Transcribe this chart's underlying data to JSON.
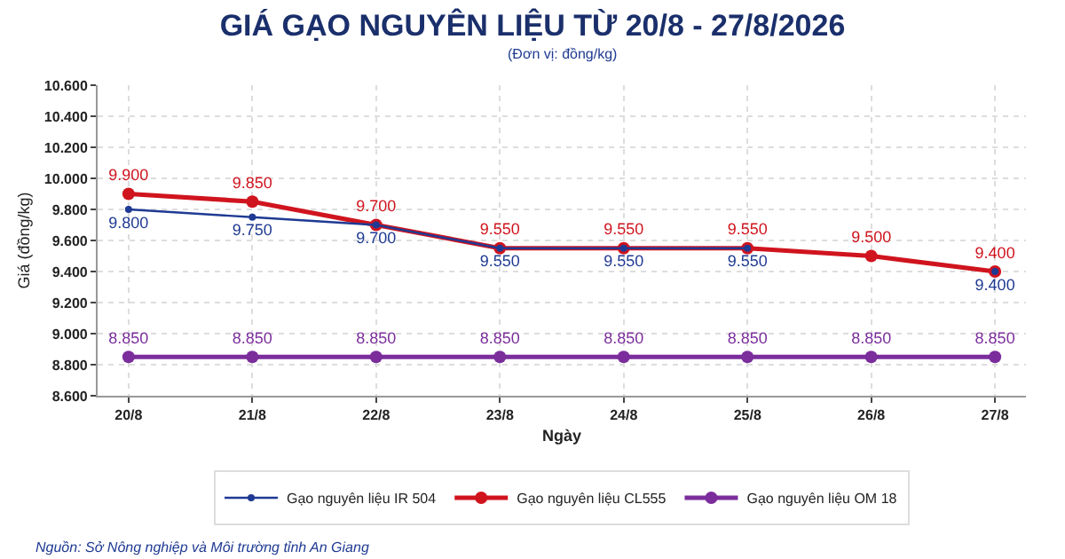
{
  "chart_data": {
    "type": "line",
    "title": "GIÁ GẠO NGUYÊN LIỆU TỪ 20/8 - 27/8/2026",
    "subtitle": "(Đơn vị: đồng/kg)",
    "xlabel": "Ngày",
    "ylabel": "Giá (đồng/kg)",
    "categories": [
      "20/8",
      "21/8",
      "22/8",
      "23/8",
      "24/8",
      "25/8",
      "26/8",
      "27/8"
    ],
    "series": [
      {
        "name": "Gạo nguyên liệu IR 504",
        "color": "#1f3a93",
        "values": [
          9800,
          9750,
          9700,
          9550,
          9550,
          9550,
          null,
          9400
        ],
        "value_labels": [
          "9.800",
          "9.750",
          "9.700",
          "9.550",
          "9.550",
          "9.550",
          null,
          "9.400"
        ]
      },
      {
        "name": "Gạo nguyên liệu CL555",
        "color": "#d0141e",
        "values": [
          9900,
          9850,
          9700,
          9550,
          9550,
          9550,
          9500,
          9400
        ],
        "value_labels": [
          "9.900",
          "9.850",
          "9.700",
          "9.550",
          "9.550",
          "9.550",
          "9.500",
          "9.400"
        ]
      },
      {
        "name": "Gạo nguyên liệu OM 18",
        "color": "#7b2d9c",
        "values": [
          8850,
          8850,
          8850,
          8850,
          8850,
          8850,
          8850,
          8850
        ],
        "value_labels": [
          "8.850",
          "8.850",
          "8.850",
          "8.850",
          "8.850",
          "8.850",
          "8.850",
          "8.850"
        ]
      }
    ],
    "ylim": [
      8600,
      10600
    ],
    "yticks": [
      {
        "value": 8600,
        "label": "8.600"
      },
      {
        "value": 8800,
        "label": "8.800"
      },
      {
        "value": 9000,
        "label": "9.000"
      },
      {
        "value": 9200,
        "label": "9.200"
      },
      {
        "value": 9400,
        "label": "9.400"
      },
      {
        "value": 9600,
        "label": "9.600"
      },
      {
        "value": 9800,
        "label": "9.800"
      },
      {
        "value": 10000,
        "label": "10.000"
      },
      {
        "value": 10200,
        "label": "10.200"
      },
      {
        "value": 10400,
        "label": "10.400"
      },
      {
        "value": 10600,
        "label": "10.600"
      }
    ],
    "grid": true,
    "legend": "bottom",
    "marker": "circle",
    "line_style": "solid",
    "annotations": [
      "Nguồn: Sở Nông nghiệp và Môi trường tỉnh An Giang"
    ]
  }
}
